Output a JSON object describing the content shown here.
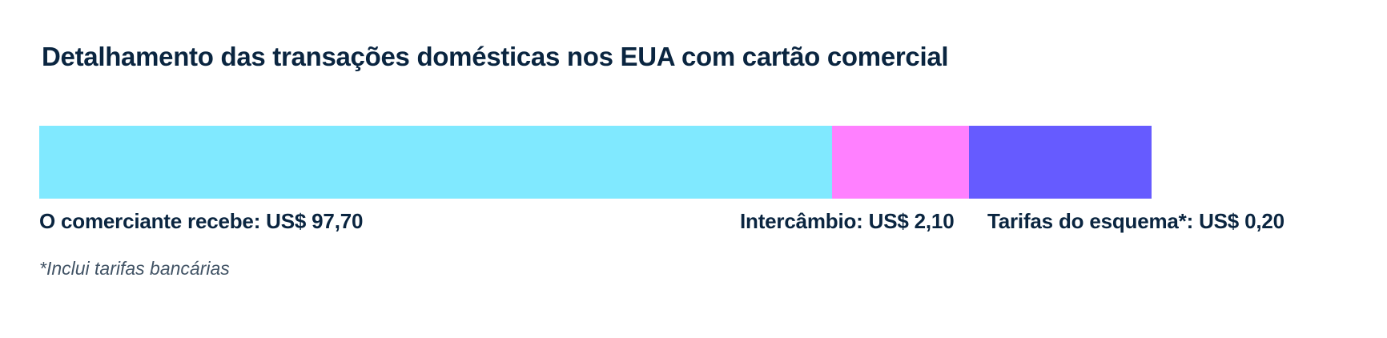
{
  "chart_data": {
    "type": "bar",
    "orientation": "horizontal-stacked",
    "title": "Detalhamento das transações domésticas nos EUA com cartão comercial",
    "unit": "US$",
    "segments": [
      {
        "label": "O comerciante recebe: US$ 97,70",
        "value": 97.7,
        "color": "#80e9ff"
      },
      {
        "label": "Intercâmbio: US$ 2,10",
        "value": 2.1,
        "color": "#ff80ff"
      },
      {
        "label": "Tarifas do esquema*: US$ 0,20",
        "value": 0.2,
        "color": "#665bff"
      }
    ],
    "footnote": "*Inclui tarifas bancárias"
  }
}
